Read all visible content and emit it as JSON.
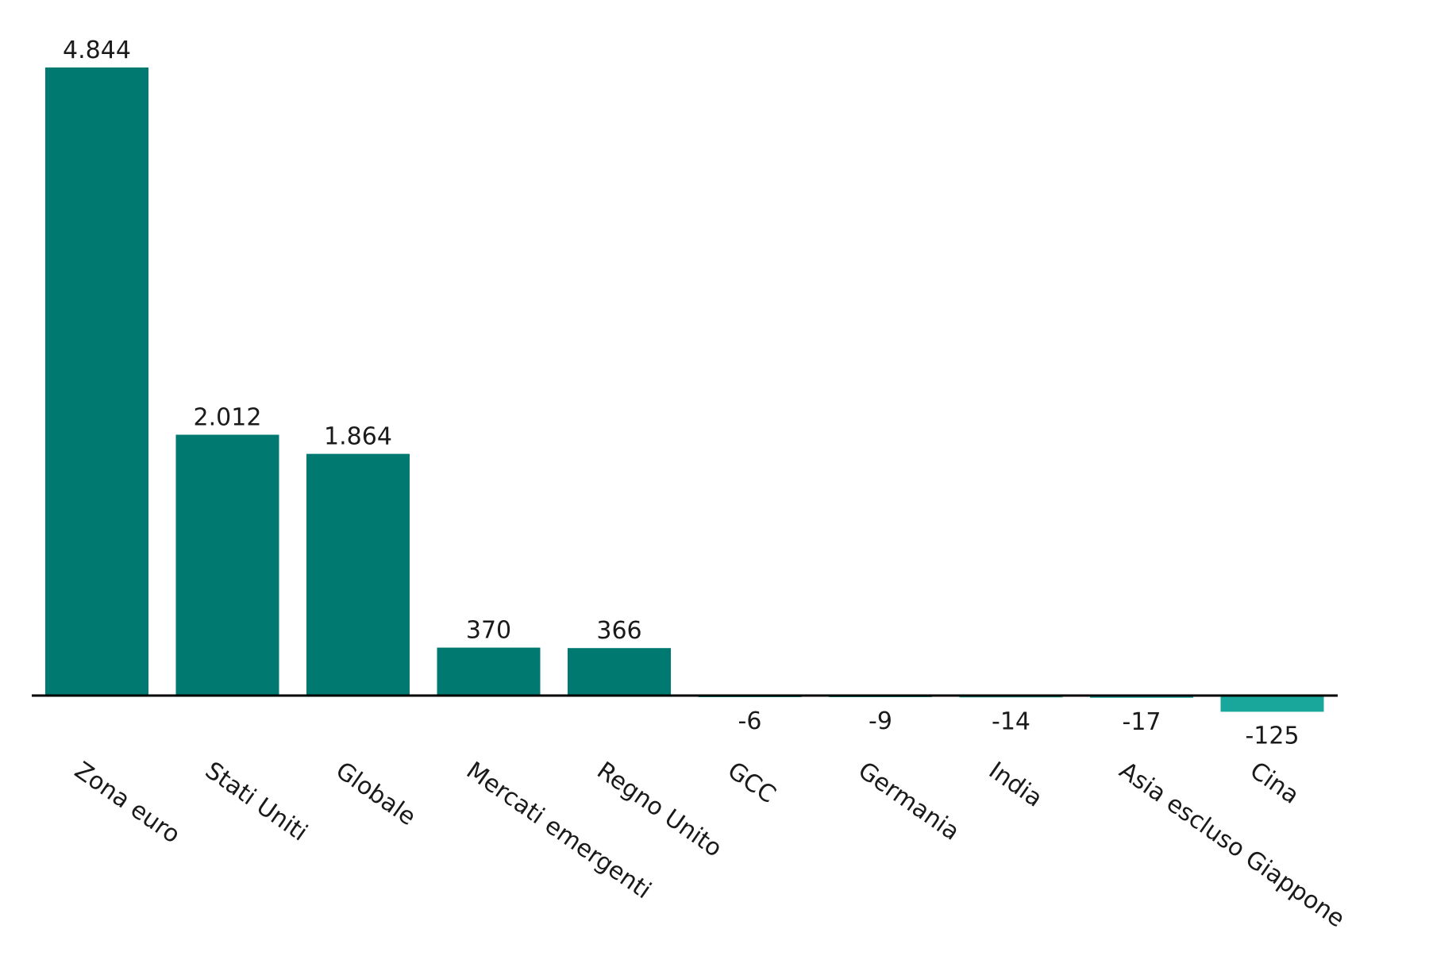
{
  "chart_data": {
    "type": "bar",
    "categories": [
      "Zona euro",
      "Stati Uniti",
      "Globale",
      "Mercati emergenti",
      "Regno Unito",
      "GCC",
      "Germania",
      "India",
      "Asia escluso Giappone",
      "Cina"
    ],
    "values": [
      4844,
      2012,
      1864,
      370,
      366,
      -6,
      -9,
      -14,
      -17,
      -125
    ],
    "value_labels": [
      "4.844",
      "2.012",
      "1.864",
      "370",
      "366",
      "-6",
      "-9",
      "-14",
      "-17",
      "-125"
    ],
    "title": "",
    "xlabel": "",
    "ylabel": "",
    "ylim": [
      -125,
      4844
    ],
    "grid": false,
    "legend": "none"
  },
  "colors": {
    "positive_bar": "#007a70",
    "negative_bar": "#1aa79b",
    "axis": "#000000",
    "text": "#1a1a1a"
  }
}
